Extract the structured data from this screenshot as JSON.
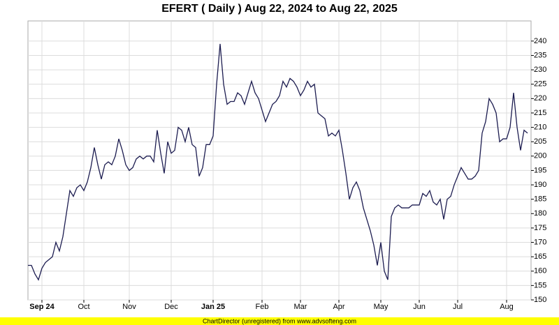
{
  "chart_data": {
    "type": "line",
    "title": "EFERT ( Daily ) Aug 22, 2024 to Aug 22, 2025",
    "footer": "ChartDirector (unregistered) from www.advsofteng.com",
    "categories": [
      null,
      null,
      null,
      null,
      "Sep 24",
      null,
      null,
      null,
      null,
      null,
      null,
      null,
      null,
      null,
      null,
      null,
      "Oct",
      null,
      null,
      null,
      null,
      null,
      null,
      null,
      null,
      null,
      null,
      null,
      null,
      "Nov",
      null,
      null,
      null,
      null,
      null,
      null,
      null,
      null,
      null,
      null,
      null,
      "Dec",
      null,
      null,
      null,
      null,
      null,
      null,
      null,
      null,
      null,
      null,
      null,
      "Jan 25",
      null,
      null,
      null,
      null,
      null,
      null,
      null,
      null,
      null,
      null,
      null,
      null,
      null,
      "Feb",
      null,
      null,
      null,
      null,
      null,
      null,
      null,
      null,
      null,
      null,
      "Mar",
      null,
      null,
      null,
      null,
      null,
      null,
      null,
      null,
      null,
      null,
      "Apr",
      null,
      null,
      null,
      null,
      null,
      null,
      null,
      null,
      null,
      null,
      null,
      "May",
      null,
      null,
      null,
      null,
      null,
      null,
      null,
      null,
      null,
      null,
      "Jun",
      null,
      null,
      null,
      null,
      null,
      null,
      null,
      null,
      null,
      null,
      "Jul",
      null,
      null,
      null,
      null,
      null,
      null,
      null,
      null,
      null,
      null,
      null,
      null,
      null,
      "Aug",
      null,
      null,
      null,
      null,
      null,
      null
    ],
    "series": [
      {
        "color": "#1c1c50",
        "values": [
          162,
          162,
          159,
          157,
          161,
          163,
          164,
          165,
          170,
          167,
          172,
          180,
          188,
          186,
          189,
          190,
          188,
          191,
          196,
          203,
          197,
          192,
          197,
          198,
          197,
          200,
          206,
          202,
          197,
          195,
          196,
          199,
          200,
          199,
          200,
          200,
          198,
          209,
          201,
          194,
          205,
          201,
          202,
          210,
          209,
          205,
          210,
          204,
          203,
          193,
          196,
          204,
          204,
          207,
          225,
          239,
          225,
          218,
          219,
          219,
          222,
          221,
          218,
          222,
          226,
          222,
          220,
          216,
          212,
          215,
          218,
          219,
          221,
          226,
          224,
          227,
          226,
          224,
          221,
          223,
          226,
          224,
          225,
          215,
          214,
          213,
          207,
          208,
          207,
          209,
          202,
          194,
          185,
          189,
          191,
          188,
          182,
          178,
          174,
          169,
          162,
          170,
          160,
          157,
          179,
          182,
          183,
          182,
          182,
          182,
          183,
          183,
          183,
          187,
          186,
          188,
          184,
          183,
          185,
          178,
          185,
          186,
          190,
          193,
          196,
          194,
          192,
          192,
          193,
          195,
          208,
          212,
          220,
          218,
          215,
          205,
          206,
          206,
          210,
          222,
          210,
          202,
          209,
          208
        ]
      }
    ],
    "ylim": [
      150,
      247
    ],
    "yticks": [
      150,
      155,
      160,
      165,
      170,
      175,
      180,
      185,
      190,
      195,
      200,
      205,
      210,
      215,
      220,
      225,
      230,
      235,
      240
    ],
    "grid": true
  }
}
